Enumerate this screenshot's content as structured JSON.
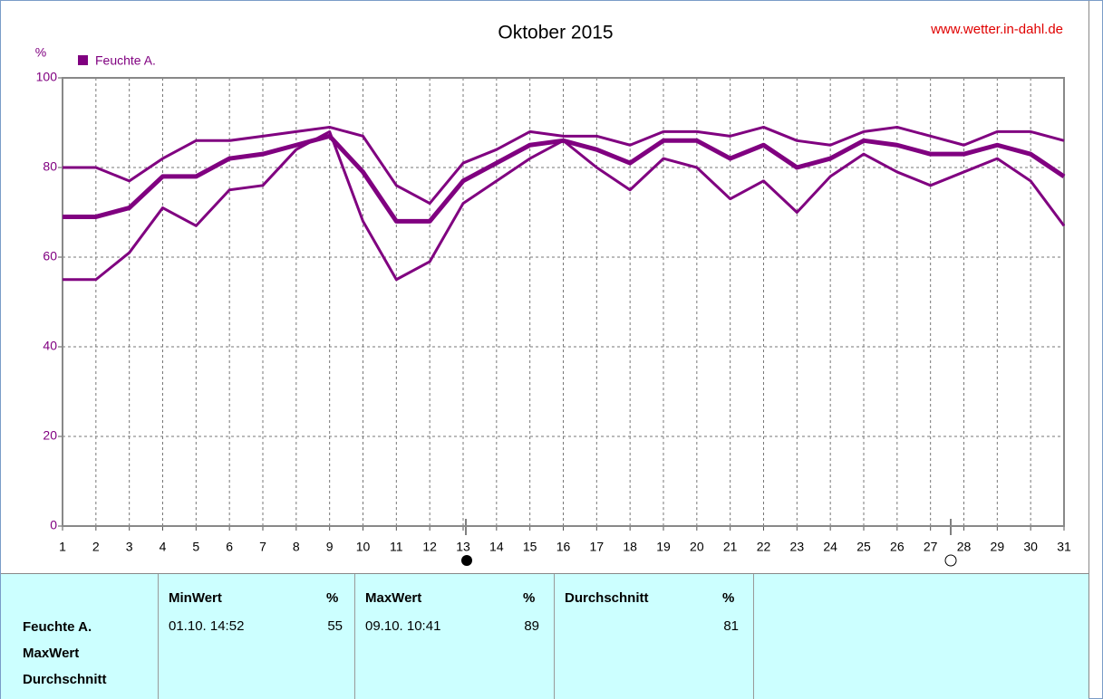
{
  "chart_data": {
    "type": "line",
    "title": "Oktober 2015",
    "source": "www.wetter.in-dahl.de",
    "y_label": "%",
    "legend": "Feuchte A.",
    "x": [
      1,
      2,
      3,
      4,
      5,
      6,
      7,
      8,
      9,
      10,
      11,
      12,
      13,
      14,
      15,
      16,
      17,
      18,
      19,
      20,
      21,
      22,
      23,
      24,
      25,
      26,
      27,
      28,
      29,
      30,
      31
    ],
    "xlim": [
      1,
      31
    ],
    "xticks": [
      1,
      2,
      3,
      4,
      5,
      6,
      7,
      8,
      9,
      10,
      11,
      12,
      13,
      14,
      15,
      16,
      17,
      18,
      19,
      20,
      21,
      22,
      23,
      24,
      25,
      26,
      27,
      28,
      29,
      30,
      31
    ],
    "ylim": [
      0,
      100
    ],
    "yticks": [
      0,
      20,
      40,
      60,
      80,
      100
    ],
    "grid": true,
    "series": [
      {
        "color": "#800080",
        "values": [
          80,
          80,
          77,
          82,
          86,
          86,
          87,
          88,
          89,
          87,
          76,
          72,
          81,
          84,
          88,
          87,
          87,
          85,
          88,
          88,
          87,
          89,
          86,
          85,
          88,
          89,
          87,
          85,
          88,
          88,
          86
        ]
      },
      {
        "color": "#800080",
        "values": [
          69,
          69,
          71,
          78,
          78,
          82,
          83,
          85,
          87,
          79,
          68,
          68,
          77,
          81,
          85,
          86,
          84,
          81,
          86,
          86,
          82,
          85,
          80,
          82,
          86,
          85,
          83,
          83,
          85,
          83,
          78
        ]
      },
      {
        "color": "#800080",
        "values": [
          55,
          55,
          61,
          71,
          67,
          75,
          76,
          84,
          88,
          68,
          55,
          59,
          72,
          77,
          82,
          86,
          80,
          75,
          82,
          80,
          73,
          77,
          70,
          78,
          83,
          79,
          76,
          79,
          82,
          77,
          67
        ]
      }
    ]
  },
  "stats": {
    "row_labels": [
      "Feuchte A.",
      "MaxWert",
      "Durchschnitt"
    ],
    "columns": [
      {
        "header": "MinWert",
        "unit": "%",
        "time": "01.10. 14:52",
        "value": 55
      },
      {
        "header": "MaxWert",
        "unit": "%",
        "time": "09.10. 10:41",
        "value": 89
      },
      {
        "header": "Durchschnitt",
        "unit": "%",
        "value": 81
      }
    ]
  }
}
